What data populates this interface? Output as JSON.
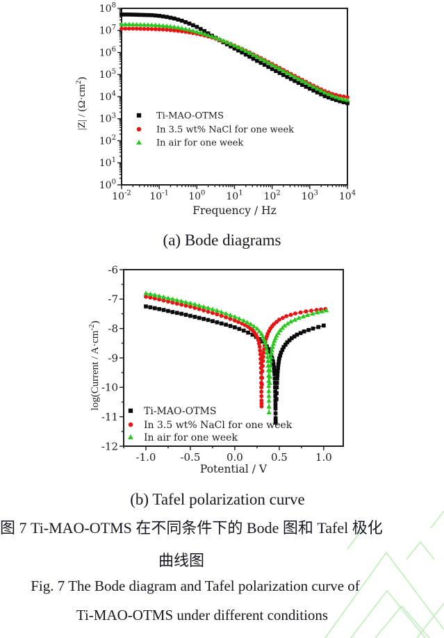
{
  "figure": {
    "captions": {
      "a": "(a) Bode diagrams",
      "b": "(b) Tafel polarization curve",
      "zh_line1": "图 7  Ti-MAO-OTMS 在不同条件下的 Bode 图和 Tafel 极化",
      "zh_line2": "曲线图",
      "en_line1": "Fig. 7  The Bode diagram and Tafel polarization curve of",
      "en_line2": "Ti-MAO-OTMS under different conditions"
    }
  },
  "colors": {
    "series_black": "#0a0a0a",
    "series_red": "#e81414",
    "series_green": "#28c81e",
    "axis": "#1a1a1a",
    "text": "#1a1a1a",
    "watermark": "#a9e7a2"
  },
  "chart_data": [
    {
      "id": "bode",
      "type": "line",
      "title": "(a) Bode diagrams",
      "x_scale": "log10",
      "y_scale": "log10",
      "xlabel": "Frequency / Hz",
      "ylabel_parts": {
        "pre": "|Z| / (Ω·cm",
        "sup": "2",
        "post": ")"
      },
      "xlim": [
        -2,
        4
      ],
      "ylim": [
        0,
        8
      ],
      "xticks": {
        "values": [
          -2,
          -1,
          0,
          1,
          2,
          3,
          4
        ],
        "labels": [
          "10^-2",
          "10^-1",
          "10^0",
          "10^1",
          "10^2",
          "10^3",
          "10^4"
        ]
      },
      "yticks": {
        "values": [
          0,
          1,
          2,
          3,
          4,
          5,
          6,
          7,
          8
        ],
        "labels": [
          "10^0",
          "10^1",
          "10^2",
          "10^3",
          "10^4",
          "10^5",
          "10^6",
          "10^7",
          "10^8"
        ]
      },
      "grid": false,
      "legend_position": "left-middle-inside",
      "x": [
        -2,
        -1.8,
        -1.6,
        -1.4,
        -1.2,
        -1,
        -0.8,
        -0.6,
        -0.4,
        -0.2,
        0,
        0.2,
        0.4,
        0.6,
        0.8,
        1,
        1.2,
        1.4,
        1.6,
        1.8,
        2,
        2.2,
        2.4,
        2.6,
        2.8,
        3,
        3.2,
        3.4,
        3.6,
        3.8,
        4
      ],
      "series": [
        {
          "name": "Ti-MAO-OTMS",
          "marker": "square",
          "color_key": "series_black",
          "y": [
            7.72,
            7.72,
            7.71,
            7.7,
            7.69,
            7.66,
            7.61,
            7.54,
            7.44,
            7.31,
            7.16,
            6.97,
            6.76,
            6.56,
            6.37,
            6.18,
            6.0,
            5.81,
            5.62,
            5.44,
            5.25,
            5.07,
            4.89,
            4.71,
            4.53,
            4.36,
            4.19,
            4.02,
            3.9,
            3.79,
            3.7
          ]
        },
        {
          "name": "In 3.5 wt% NaCl for one week",
          "marker": "circle",
          "color_key": "series_red",
          "y": [
            7.08,
            7.08,
            7.08,
            7.07,
            7.06,
            7.05,
            7.03,
            7.0,
            6.96,
            6.91,
            6.85,
            6.77,
            6.68,
            6.57,
            6.45,
            6.31,
            6.16,
            6.0,
            5.83,
            5.66,
            5.48,
            5.3,
            5.12,
            4.94,
            4.76,
            4.58,
            4.41,
            4.25,
            4.12,
            4.03,
            3.97
          ]
        },
        {
          "name": "In air for one week",
          "marker": "triangle",
          "color_key": "series_green",
          "y": [
            7.28,
            7.28,
            7.27,
            7.26,
            7.25,
            7.23,
            7.2,
            7.16,
            7.1,
            7.03,
            6.94,
            6.84,
            6.73,
            6.61,
            6.47,
            6.32,
            6.16,
            5.99,
            5.81,
            5.63,
            5.45,
            5.26,
            5.08,
            4.9,
            4.72,
            4.54,
            4.36,
            4.19,
            4.04,
            3.92,
            3.85
          ]
        }
      ]
    },
    {
      "id": "tafel",
      "type": "line",
      "title": "(b) Tafel polarization curve",
      "x_scale": "linear",
      "y_scale": "linear",
      "xlabel": "Potential / V",
      "ylabel_parts": {
        "pre": "log(Current / A·cm",
        "sup": "-2",
        "post": ")"
      },
      "xlim": [
        -1.25,
        1.22
      ],
      "ylim": [
        -12,
        -6
      ],
      "xticks": {
        "values": [
          -1.0,
          -0.5,
          0.0,
          0.5,
          1.0
        ],
        "labels": [
          "-1.0",
          "-0.5",
          "0.0",
          "0.5",
          "1.0"
        ]
      },
      "yticks": {
        "values": [
          -6,
          -7,
          -8,
          -9,
          -10,
          -11,
          -12
        ],
        "labels": [
          "-6",
          "-7",
          "-8",
          "-9",
          "-10",
          "-11",
          "-12"
        ]
      },
      "minor": {
        "x": 0.25,
        "y": 0.5
      },
      "grid": false,
      "legend_position": "bottom-left-inside",
      "series": [
        {
          "name": "Ti-MAO-OTMS",
          "marker": "square",
          "color_key": "series_black",
          "segments": [
            [
              [
                -1.0,
                -7.25
              ],
              [
                -0.9,
                -7.31
              ],
              [
                -0.8,
                -7.37
              ],
              [
                -0.7,
                -7.44
              ],
              [
                -0.6,
                -7.5
              ],
              [
                -0.5,
                -7.57
              ],
              [
                -0.4,
                -7.64
              ],
              [
                -0.3,
                -7.71
              ],
              [
                -0.2,
                -7.79
              ],
              [
                -0.1,
                -7.87
              ],
              [
                0.0,
                -7.96
              ],
              [
                0.1,
                -8.07
              ],
              [
                0.2,
                -8.21
              ],
              [
                0.28,
                -8.36
              ],
              [
                0.34,
                -8.52
              ],
              [
                0.38,
                -8.7
              ],
              [
                0.41,
                -8.9
              ],
              [
                0.43,
                -9.12
              ],
              [
                0.44,
                -9.32
              ],
              [
                0.447,
                -9.55
              ],
              [
                0.452,
                -9.85
              ],
              [
                0.455,
                -10.15
              ],
              [
                0.457,
                -10.45
              ],
              [
                0.458,
                -10.72
              ],
              [
                0.459,
                -11.05
              ],
              [
                0.46,
                -11.2
              ]
            ],
            [
              [
                0.468,
                -10.4
              ],
              [
                0.472,
                -10.0
              ],
              [
                0.477,
                -9.7
              ],
              [
                0.483,
                -9.45
              ],
              [
                0.49,
                -9.22
              ],
              [
                0.5,
                -9.02
              ],
              [
                0.52,
                -8.82
              ],
              [
                0.55,
                -8.63
              ],
              [
                0.59,
                -8.47
              ],
              [
                0.64,
                -8.33
              ],
              [
                0.7,
                -8.21
              ],
              [
                0.78,
                -8.1
              ],
              [
                0.88,
                -8.0
              ],
              [
                1.0,
                -7.9
              ]
            ]
          ]
        },
        {
          "name": "In 3.5 wt% NaCl for one week",
          "marker": "circle",
          "color_key": "series_red",
          "segments": [
            [
              [
                -1.0,
                -6.92
              ],
              [
                -0.9,
                -6.98
              ],
              [
                -0.8,
                -7.05
              ],
              [
                -0.7,
                -7.12
              ],
              [
                -0.6,
                -7.19
              ],
              [
                -0.5,
                -7.26
              ],
              [
                -0.4,
                -7.34
              ],
              [
                -0.3,
                -7.43
              ],
              [
                -0.2,
                -7.52
              ],
              [
                -0.1,
                -7.62
              ],
              [
                0.0,
                -7.73
              ],
              [
                0.08,
                -7.83
              ],
              [
                0.15,
                -7.94
              ],
              [
                0.2,
                -8.06
              ],
              [
                0.24,
                -8.22
              ],
              [
                0.265,
                -8.4
              ],
              [
                0.28,
                -8.62
              ],
              [
                0.288,
                -8.88
              ],
              [
                0.293,
                -9.18
              ],
              [
                0.296,
                -9.5
              ],
              [
                0.298,
                -9.85
              ],
              [
                0.299,
                -10.15
              ],
              [
                0.3,
                -10.45
              ],
              [
                0.301,
                -10.65
              ]
            ],
            [
              [
                0.306,
                -9.9
              ],
              [
                0.31,
                -9.45
              ],
              [
                0.316,
                -9.1
              ],
              [
                0.324,
                -8.82
              ],
              [
                0.335,
                -8.58
              ],
              [
                0.35,
                -8.36
              ],
              [
                0.37,
                -8.18
              ],
              [
                0.4,
                -8.0
              ],
              [
                0.44,
                -7.85
              ],
              [
                0.5,
                -7.7
              ],
              [
                0.58,
                -7.58
              ],
              [
                0.68,
                -7.49
              ],
              [
                0.8,
                -7.42
              ],
              [
                0.92,
                -7.37
              ],
              [
                1.02,
                -7.34
              ]
            ]
          ]
        },
        {
          "name": "In air for one week",
          "marker": "triangle",
          "color_key": "series_green",
          "segments": [
            [
              [
                -1.0,
                -6.8
              ],
              [
                -0.9,
                -6.86
              ],
              [
                -0.8,
                -6.93
              ],
              [
                -0.7,
                -7.0
              ],
              [
                -0.6,
                -7.07
              ],
              [
                -0.5,
                -7.14
              ],
              [
                -0.4,
                -7.22
              ],
              [
                -0.3,
                -7.3
              ],
              [
                -0.2,
                -7.39
              ],
              [
                -0.1,
                -7.49
              ],
              [
                0.0,
                -7.6
              ],
              [
                0.1,
                -7.73
              ],
              [
                0.18,
                -7.85
              ],
              [
                0.25,
                -8.0
              ],
              [
                0.3,
                -8.18
              ],
              [
                0.33,
                -8.38
              ],
              [
                0.35,
                -8.58
              ],
              [
                0.365,
                -8.82
              ],
              [
                0.373,
                -9.1
              ],
              [
                0.378,
                -9.42
              ],
              [
                0.381,
                -9.78
              ],
              [
                0.383,
                -10.12
              ],
              [
                0.384,
                -10.45
              ],
              [
                0.385,
                -10.85
              ]
            ],
            [
              [
                0.392,
                -9.85
              ],
              [
                0.397,
                -9.42
              ],
              [
                0.403,
                -9.1
              ],
              [
                0.412,
                -8.85
              ],
              [
                0.425,
                -8.62
              ],
              [
                0.445,
                -8.42
              ],
              [
                0.47,
                -8.24
              ],
              [
                0.51,
                -8.06
              ],
              [
                0.56,
                -7.9
              ],
              [
                0.63,
                -7.76
              ],
              [
                0.72,
                -7.64
              ],
              [
                0.82,
                -7.54
              ],
              [
                0.93,
                -7.45
              ],
              [
                1.03,
                -7.38
              ]
            ]
          ]
        }
      ]
    }
  ]
}
